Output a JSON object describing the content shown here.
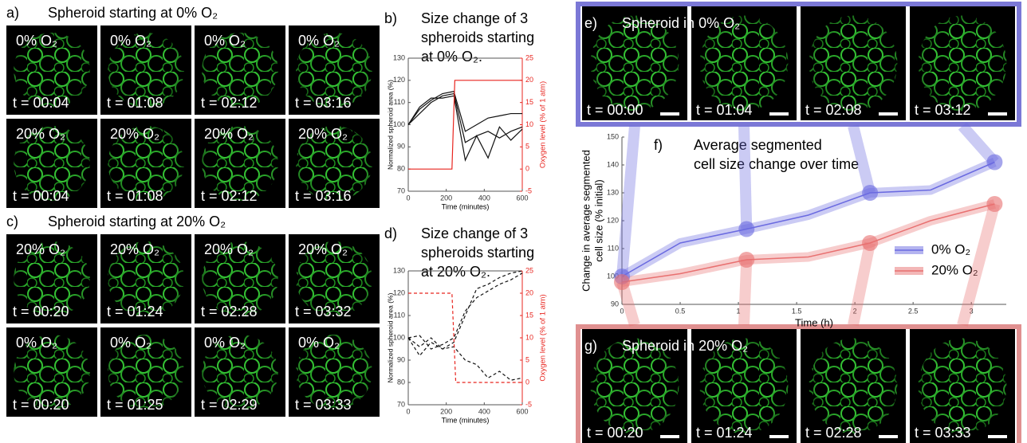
{
  "panels": {
    "a": {
      "label": "a)",
      "title": "Spheroid starting at 0% O₂",
      "tiles": [
        [
          {
            "o2": "0% O₂",
            "time": "t = 00:04"
          },
          {
            "o2": "0% O₂",
            "time": "t = 01:08"
          },
          {
            "o2": "0% O₂",
            "time": "t = 02:12"
          },
          {
            "o2": "0% O₂",
            "time": "t = 03:16"
          }
        ],
        [
          {
            "o2": "20% O₂",
            "time": "t = 00:04"
          },
          {
            "o2": "20% O₂",
            "time": "t = 01:08"
          },
          {
            "o2": "20% O₂",
            "time": "t = 02:12"
          },
          {
            "o2": "20% O₂",
            "time": "t = 03:16"
          }
        ]
      ]
    },
    "c": {
      "label": "c)",
      "title": "Spheroid starting at 20% O₂",
      "tiles": [
        [
          {
            "o2": "20% O₂",
            "time": "t = 00:20"
          },
          {
            "o2": "20% O₂",
            "time": "t = 01:24"
          },
          {
            "o2": "20% O₂",
            "time": "t = 02:28"
          },
          {
            "o2": "20% O₂",
            "time": "t = 03:32"
          }
        ],
        [
          {
            "o2": "0% O₂",
            "time": "t = 00:20"
          },
          {
            "o2": "0% O₂",
            "time": "t = 01:25"
          },
          {
            "o2": "0% O₂",
            "time": "t = 02:29"
          },
          {
            "o2": "0% O₂",
            "time": "t = 03:33"
          }
        ]
      ]
    },
    "e": {
      "label": "e)",
      "title": "Spheroid in 0% O₂",
      "times": [
        "t = 00:00",
        "t = 01:04",
        "t = 02:08",
        "t = 03:12"
      ]
    },
    "g": {
      "label": "g)",
      "title": "Spheroid in 20% O₂",
      "times": [
        "t = 00:20",
        "t = 01:24",
        "t = 02:28",
        "t = 03:33"
      ]
    }
  },
  "chart_data": [
    {
      "type": "line",
      "label": "b)",
      "title": [
        "Size change of 3",
        "spheroids starting",
        "at 0% O₂."
      ],
      "x_label": "Time (minutes)",
      "y_label": "Normalized spheroid area (%)",
      "y2_label": "Oxygen level (% of 1 atm)",
      "line_style": "solid",
      "x": [
        0,
        60,
        120,
        180,
        240,
        300,
        360,
        420,
        480,
        540,
        600
      ],
      "xlim": [
        0,
        600
      ],
      "xticks": [
        0,
        200,
        400,
        600
      ],
      "ylim": [
        70,
        130
      ],
      "yticks": [
        70,
        80,
        90,
        100,
        110,
        120,
        130
      ],
      "y2lim": [
        -5,
        25
      ],
      "y2ticks": [
        -5,
        0,
        5,
        10,
        15,
        20,
        25
      ],
      "series": [
        {
          "color": "#111111",
          "values": [
            100,
            107,
            111,
            114,
            115,
            97,
            100,
            103,
            104,
            105,
            105
          ]
        },
        {
          "color": "#111111",
          "values": [
            100,
            105,
            110,
            113,
            114,
            92,
            95,
            97,
            94,
            97,
            99
          ]
        },
        {
          "color": "#111111",
          "values": [
            100,
            108,
            112,
            112,
            113,
            84,
            95,
            85,
            99,
            93,
            98
          ]
        },
        {
          "color": "#e8251f",
          "axis": "y2",
          "x": [
            0,
            230,
            245,
            600
          ],
          "values": [
            0,
            0,
            20,
            20
          ]
        }
      ]
    },
    {
      "type": "line",
      "label": "d)",
      "title": [
        "Size change of 3",
        "spheroids starting",
        "at 20% O₂."
      ],
      "x_label": "Time (minutes)",
      "y_label": "Normalized spheroid area (%)",
      "y2_label": "Oxygen level (% of 1 atm)",
      "line_style": "dashed",
      "x": [
        0,
        60,
        120,
        180,
        240,
        300,
        360,
        420,
        480,
        540,
        600
      ],
      "xlim": [
        0,
        600
      ],
      "xticks": [
        0,
        200,
        400,
        600
      ],
      "ylim": [
        70,
        130
      ],
      "yticks": [
        70,
        80,
        90,
        100,
        110,
        120,
        130
      ],
      "y2lim": [
        -5,
        25
      ],
      "y2ticks": [
        -5,
        0,
        5,
        10,
        15,
        20,
        25
      ],
      "series": [
        {
          "color": "#111111",
          "values": [
            100,
            96,
            100,
            95,
            98,
            110,
            122,
            124,
            127,
            129,
            130
          ]
        },
        {
          "color": "#111111",
          "values": [
            100,
            101,
            95,
            97,
            100,
            112,
            118,
            121,
            124,
            126,
            129
          ]
        },
        {
          "color": "#111111",
          "values": [
            100,
            92,
            98,
            95,
            96,
            90,
            88,
            82,
            85,
            81,
            82
          ]
        },
        {
          "color": "#e8251f",
          "axis": "y2",
          "x": [
            0,
            230,
            250,
            600
          ],
          "values": [
            20,
            20,
            0,
            0
          ]
        }
      ]
    },
    {
      "type": "line",
      "label": "f)",
      "title": [
        "Average segmented",
        "cell size change over time"
      ],
      "x_label": "Time (h)",
      "y_label": [
        "Change in average segmented",
        "cell size (% initial)"
      ],
      "x": [
        0,
        0.5,
        1.07,
        1.6,
        2.13,
        2.65,
        3.2
      ],
      "xlim": [
        0,
        3.3
      ],
      "xticks": [
        0,
        0.5,
        1,
        1.5,
        2,
        2.5,
        3
      ],
      "ylim": [
        90,
        150
      ],
      "yticks": [
        90,
        100,
        110,
        120,
        130,
        140,
        150
      ],
      "legend": "lower right",
      "series": [
        {
          "name": "0% O₂",
          "color": "#6a6ae0",
          "values": [
            100,
            112,
            117,
            122,
            130,
            131,
            141
          ]
        },
        {
          "name": "20% O₂",
          "color": "#e87070",
          "values": [
            98,
            101,
            106,
            107,
            112,
            120,
            126
          ]
        }
      ]
    }
  ]
}
